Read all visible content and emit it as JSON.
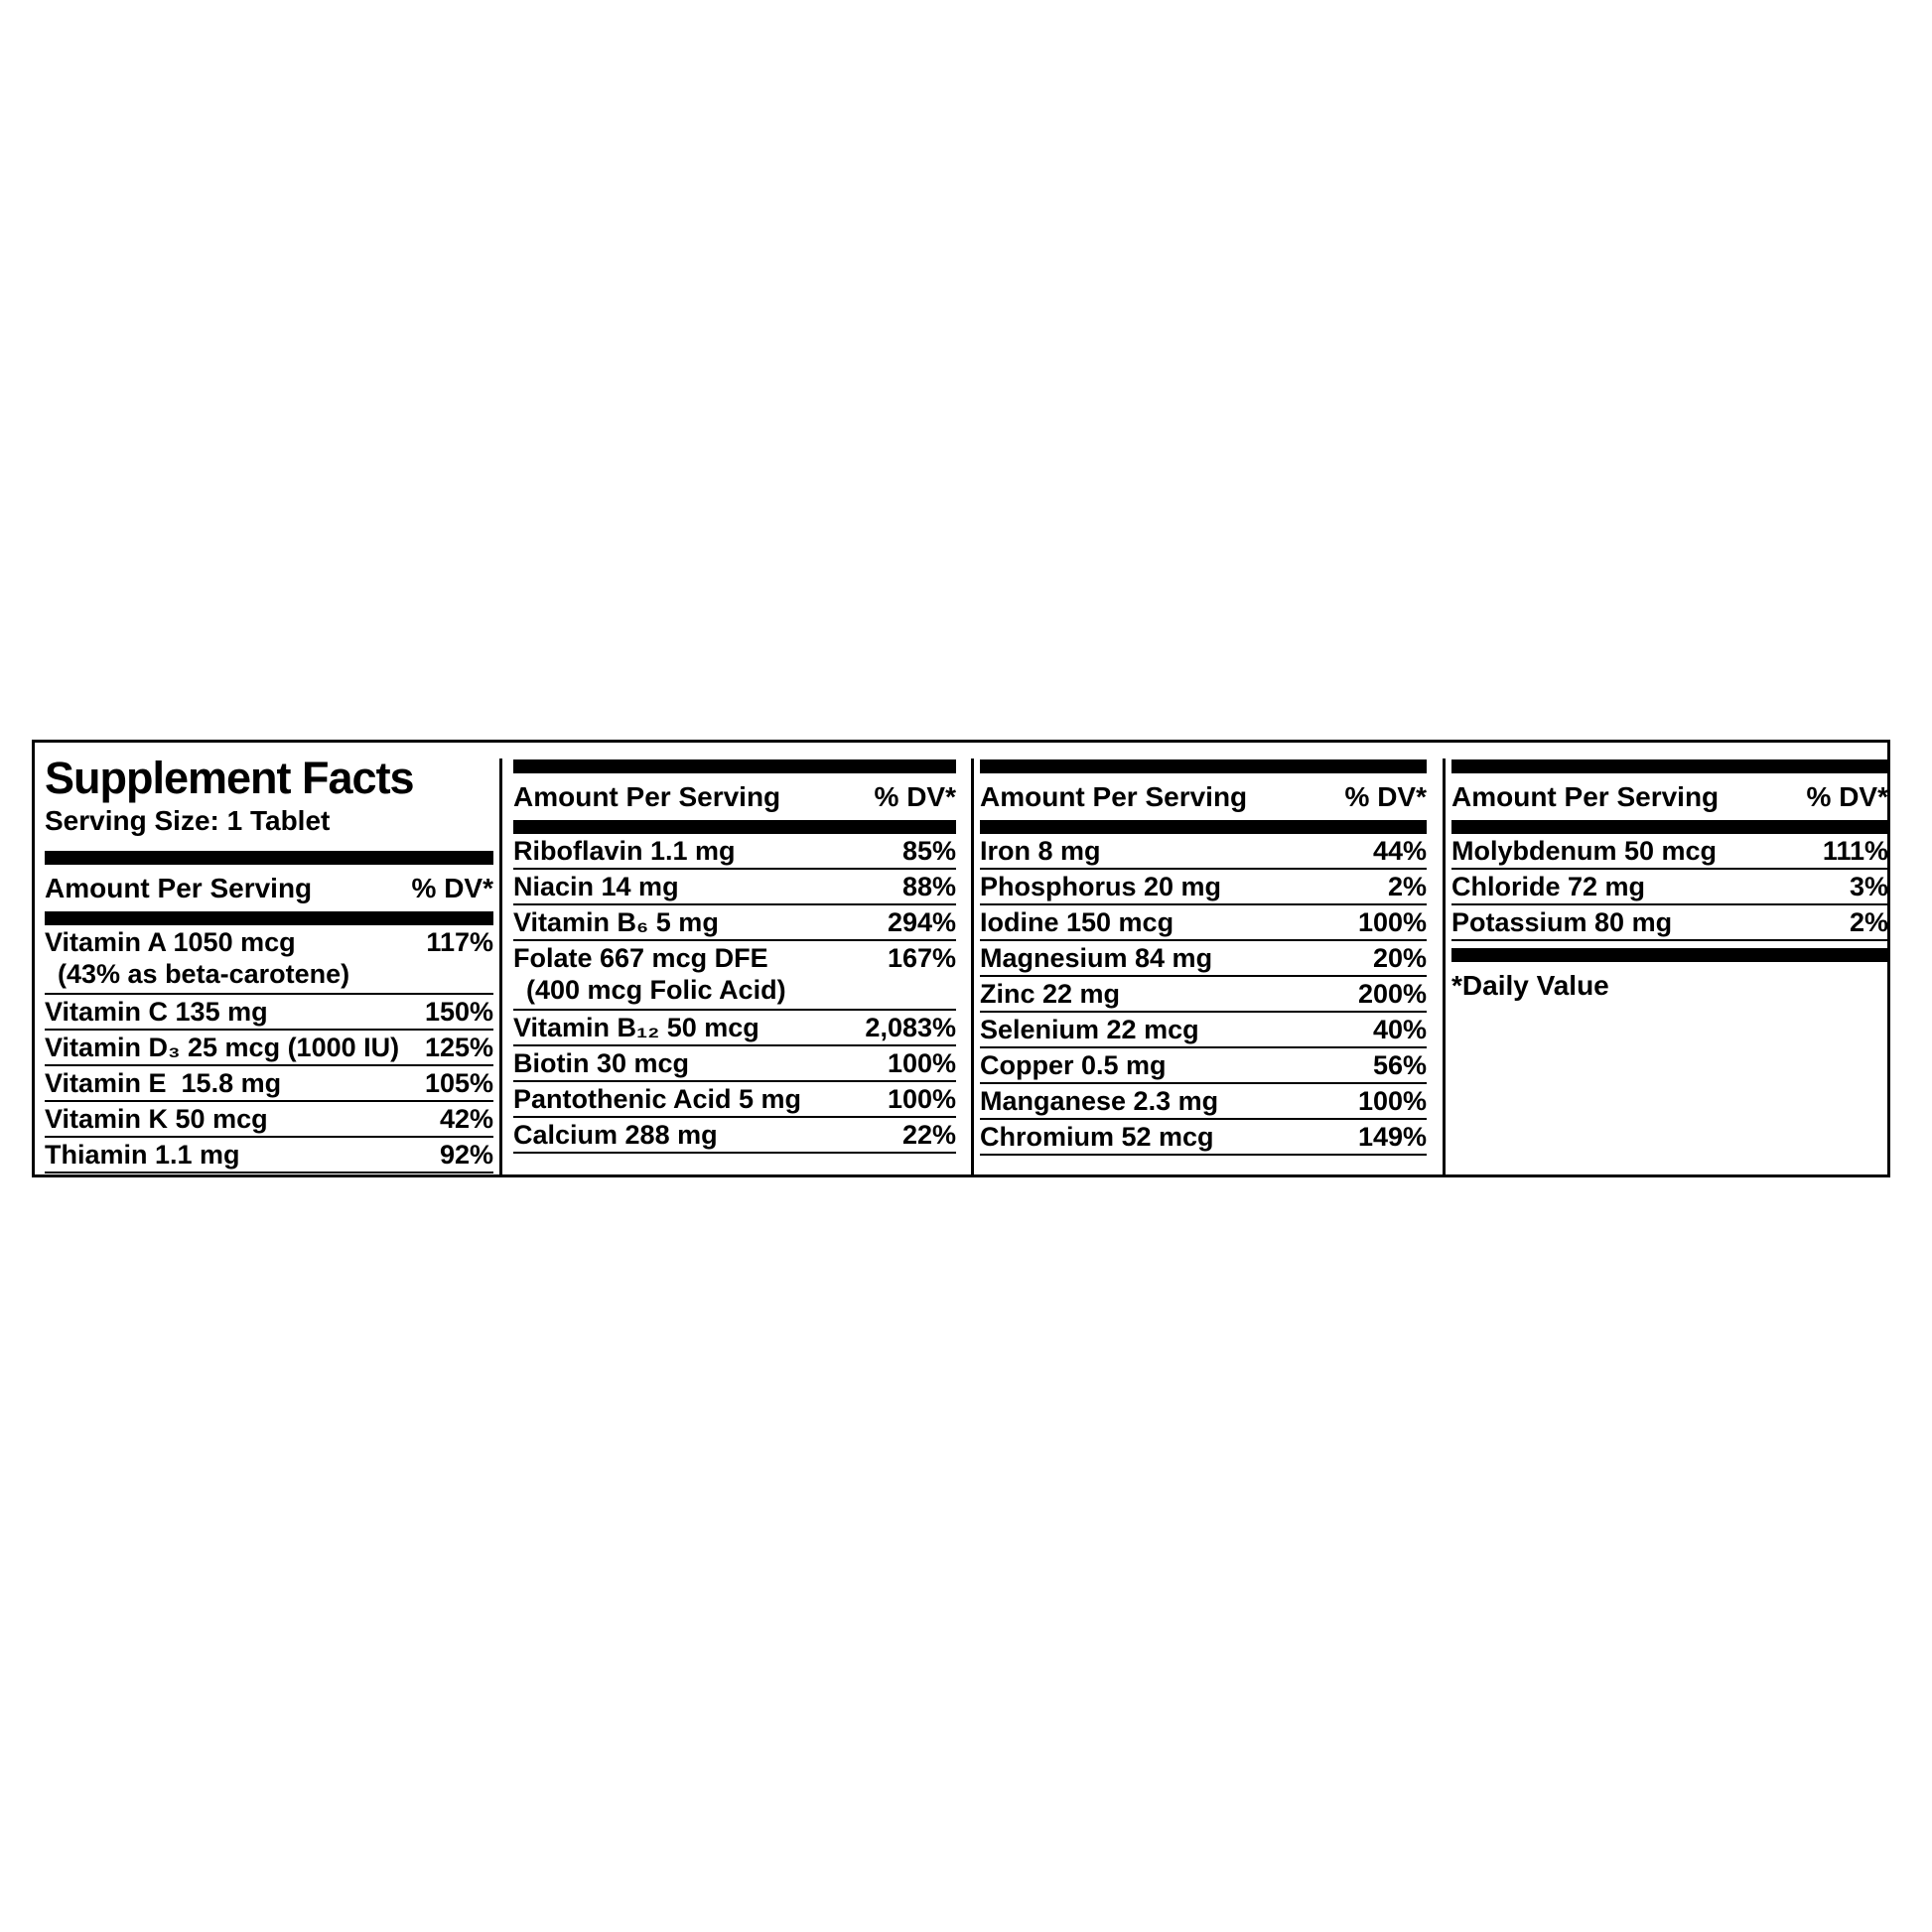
{
  "colors": {
    "background": "#ffffff",
    "text": "#000000",
    "bars": "#000000"
  },
  "label": {
    "title": "Supplement Facts",
    "serving_size": "Serving Size: 1 Tablet",
    "amount_header": "Amount Per Serving",
    "dv_header": "% DV*",
    "footnote": "*Daily Value",
    "columns": [
      {
        "rows": [
          {
            "name": "Vitamin A 1050 mcg",
            "note": "(43% as beta-carotene)",
            "dv": "117%"
          },
          {
            "name": "Vitamin C 135 mg",
            "dv": "150%"
          },
          {
            "name": "Vitamin D₃ 25 mcg (1000 IU)",
            "dv": "125%"
          },
          {
            "name": "Vitamin E  15.8 mg",
            "dv": "105%"
          },
          {
            "name": "Vitamin K 50 mcg",
            "dv": "42%"
          },
          {
            "name": "Thiamin 1.1 mg",
            "dv": "92%"
          }
        ]
      },
      {
        "rows": [
          {
            "name": "Riboflavin 1.1 mg",
            "dv": "85%"
          },
          {
            "name": "Niacin 14 mg",
            "dv": "88%"
          },
          {
            "name": "Vitamin B₆ 5 mg",
            "dv": "294%"
          },
          {
            "name": "Folate 667 mcg DFE",
            "note": "(400 mcg Folic Acid)",
            "dv": "167%"
          },
          {
            "name": "Vitamin B₁₂ 50 mcg",
            "dv": "2,083%"
          },
          {
            "name": "Biotin 30 mcg",
            "dv": "100%"
          },
          {
            "name": "Pantothenic Acid 5 mg",
            "dv": "100%"
          },
          {
            "name": "Calcium 288 mg",
            "dv": "22%"
          }
        ]
      },
      {
        "rows": [
          {
            "name": "Iron 8 mg",
            "dv": "44%"
          },
          {
            "name": "Phosphorus 20 mg",
            "dv": "2%"
          },
          {
            "name": "Iodine 150 mcg",
            "dv": "100%"
          },
          {
            "name": "Magnesium 84 mg",
            "dv": "20%"
          },
          {
            "name": "Zinc 22 mg",
            "dv": "200%"
          },
          {
            "name": "Selenium 22 mcg",
            "dv": "40%"
          },
          {
            "name": "Copper 0.5 mg",
            "dv": "56%"
          },
          {
            "name": "Manganese 2.3 mg",
            "dv": "100%"
          },
          {
            "name": "Chromium 52 mcg",
            "dv": "149%"
          }
        ]
      },
      {
        "rows": [
          {
            "name": "Molybdenum 50 mcg",
            "dv": "111%"
          },
          {
            "name": "Chloride 72 mg",
            "dv": "3%"
          },
          {
            "name": "Potassium 80 mg",
            "dv": "2%"
          }
        ]
      }
    ]
  }
}
